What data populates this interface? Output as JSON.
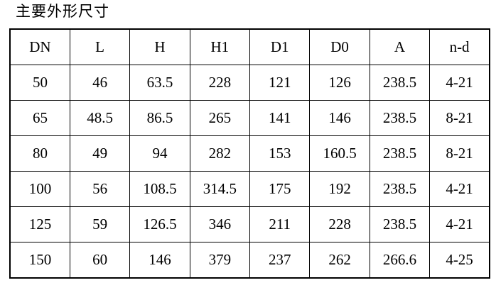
{
  "title": "主要外形尺寸",
  "table": {
    "headers": [
      "DN",
      "L",
      "H",
      "H1",
      "D1",
      "D0",
      "A",
      "n-d"
    ],
    "rows": [
      [
        "50",
        "46",
        "63.5",
        "228",
        "121",
        "126",
        "238.5",
        "4-21"
      ],
      [
        "65",
        "48.5",
        "86.5",
        "265",
        "141",
        "146",
        "238.5",
        "8-21"
      ],
      [
        "80",
        "49",
        "94",
        "282",
        "153",
        "160.5",
        "238.5",
        "8-21"
      ],
      [
        "100",
        "56",
        "108.5",
        "314.5",
        "175",
        "192",
        "238.5",
        "4-21"
      ],
      [
        "125",
        "59",
        "126.5",
        "346",
        "211",
        "228",
        "238.5",
        "4-21"
      ],
      [
        "150",
        "60",
        "146",
        "379",
        "237",
        "262",
        "266.6",
        "4-25"
      ]
    ]
  }
}
